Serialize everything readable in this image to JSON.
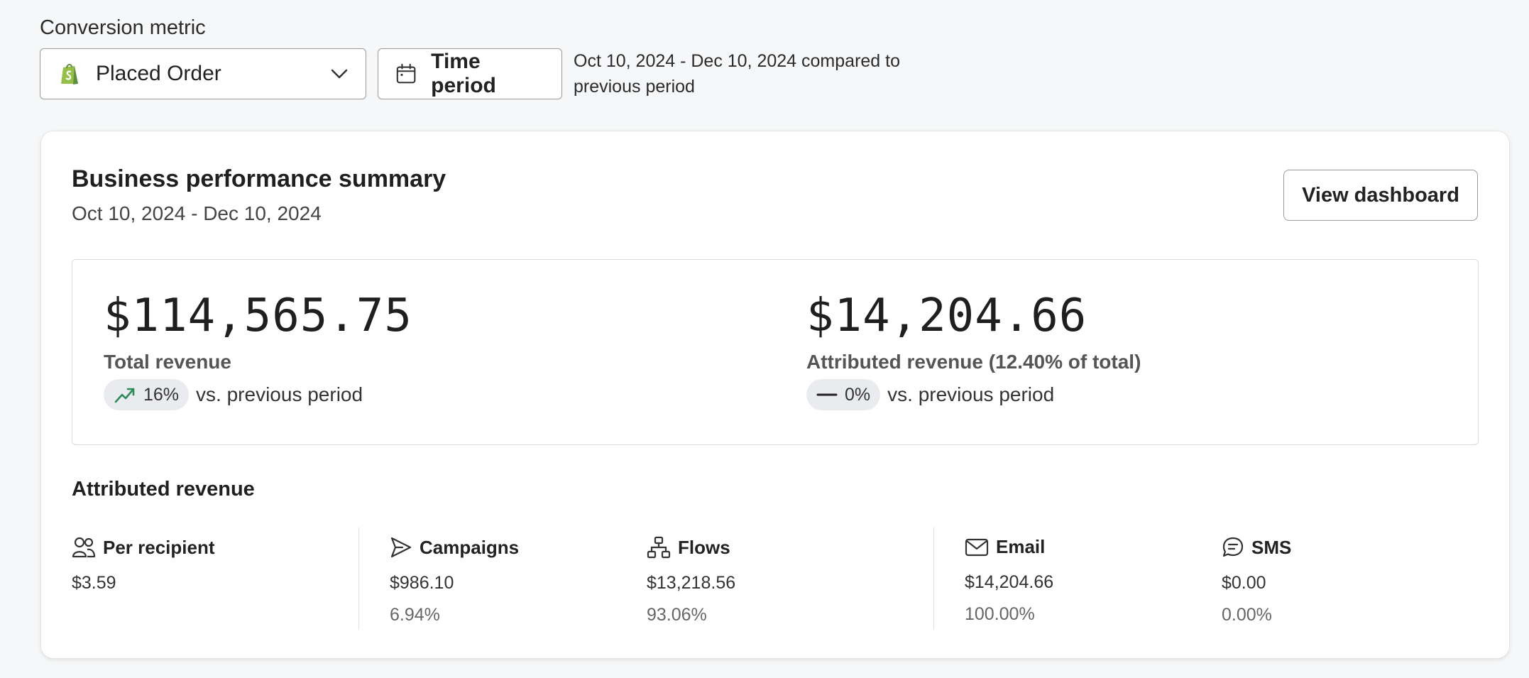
{
  "conversion_metric": {
    "label": "Conversion metric",
    "selected": "Placed Order",
    "time_period_button": "Time period",
    "period_text": "Oct 10, 2024 - Dec 10, 2024 compared to previous period"
  },
  "summary": {
    "title": "Business performance summary",
    "date_range": "Oct 10, 2024 - Dec 10, 2024",
    "view_dashboard": "View dashboard",
    "total_revenue": {
      "value": "$114,565.75",
      "label": "Total revenue",
      "delta": "16%",
      "delta_trend": "up",
      "vs_text": "vs. previous period"
    },
    "attributed_revenue": {
      "value": "$14,204.66",
      "label": "Attributed revenue (12.40% of total)",
      "delta": "0%",
      "delta_trend": "flat",
      "vs_text": "vs. previous period"
    }
  },
  "attributed": {
    "title": "Attributed revenue",
    "stats": [
      {
        "icon": "people-icon",
        "label": "Per recipient",
        "value": "$3.59",
        "pct": ""
      },
      {
        "icon": "send-icon",
        "label": "Campaigns",
        "value": "$986.10",
        "pct": "6.94%"
      },
      {
        "icon": "flow-icon",
        "label": "Flows",
        "value": "$13,218.56",
        "pct": "93.06%"
      },
      {
        "icon": "mail-icon",
        "label": "Email",
        "value": "$14,204.66",
        "pct": "100.00%"
      },
      {
        "icon": "sms-icon",
        "label": "SMS",
        "value": "$0.00",
        "pct": "0.00%"
      }
    ]
  },
  "colors": {
    "trend_up": "#2e8b57",
    "shopify_green": "#5e8e3e"
  }
}
